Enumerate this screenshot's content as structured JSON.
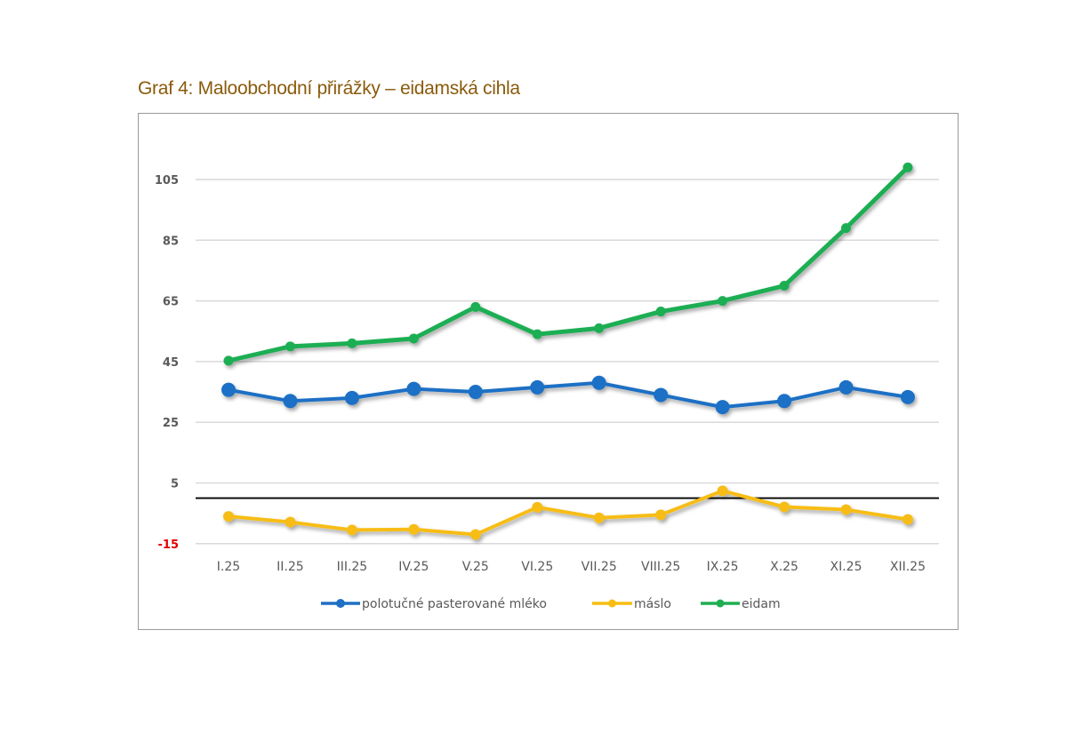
{
  "title": "Graf 4: Maloobchodní přirážky – eidamská cihla",
  "chart_data": {
    "type": "line",
    "title": "Graf 4: Maloobchodní přirážky – eidamská cihla",
    "xlabel": "",
    "ylabel": "",
    "categories": [
      "I.25",
      "II.25",
      "III.25",
      "IV.25",
      "V.25",
      "VI.25",
      "VII.25",
      "VIII.25",
      "IX.25",
      "X.25",
      "XI.25",
      "XII.25"
    ],
    "yticks": [
      105,
      85,
      65,
      45,
      25,
      5,
      -15
    ],
    "ylim": [
      -15,
      115
    ],
    "reference_line": 0,
    "grid": true,
    "legend_position": "bottom",
    "series": [
      {
        "name": "polotučné pasterované mléko",
        "color": "#1f6fc5",
        "values": [
          35.7,
          32,
          33,
          36,
          35,
          36.5,
          38,
          34,
          30,
          32,
          36.5,
          33.3
        ]
      },
      {
        "name": "máslo",
        "color": "#f7bd12",
        "values": [
          -6,
          -7.9,
          -10.5,
          -10.3,
          -12,
          -3,
          -6.5,
          -5.5,
          2.4,
          -2.9,
          -3.8,
          -7
        ]
      },
      {
        "name": "eidam",
        "color": "#1fae52",
        "values": [
          45.3,
          50,
          51,
          52.6,
          63,
          54,
          56,
          61.5,
          65,
          70,
          89,
          109
        ]
      }
    ]
  }
}
